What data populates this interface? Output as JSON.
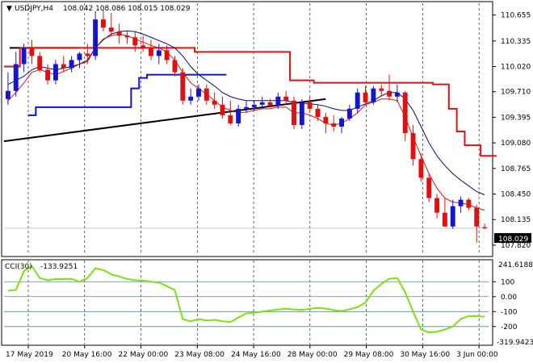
{
  "window": {
    "title": "USDJPY,H4",
    "ohlc": "108.042 108.086 108.015 108.029",
    "collapse_arrow": "▼"
  },
  "price_axis": {
    "labels": [
      "110.655",
      "110.335",
      "110.020",
      "109.710",
      "109.395",
      "109.080",
      "108.765",
      "108.450",
      "108.135",
      "107.820"
    ],
    "current_price": "108.029"
  },
  "cci": {
    "title": "CCI(30)",
    "value": "-133.9251",
    "max_label": "241.6188",
    "min_label": "-319.9423",
    "levels": [
      "100",
      "0.00",
      "-100",
      "-200"
    ]
  },
  "time_axis": {
    "labels": [
      "17 May 2019",
      "20 May 16:00",
      "22 May 00:00",
      "23 May 08:00",
      "24 May 16:00",
      "28 May 00:00",
      "29 May 08:00",
      "30 May 16:00",
      "3 Jun 00:00"
    ]
  },
  "colors": {
    "bull": "#1515d0",
    "bear": "#e01010",
    "signal_red": "#e01010",
    "signal_blue": "#1010e0",
    "ma_navy": "#0a0a70",
    "trendline": "#000000",
    "cci_line": "#7fe010",
    "grid": "#cccccc",
    "level_line": "#4a8aa8",
    "price_label_bg": "#000000"
  },
  "chart_data": {
    "type": "candlestick",
    "symbol": "USDJPY",
    "timeframe": "H4",
    "ylim": [
      107.7,
      110.8
    ],
    "candles": [
      {
        "o": 109.62,
        "h": 109.95,
        "l": 109.55,
        "c": 109.72
      },
      {
        "o": 109.72,
        "h": 110.2,
        "l": 109.65,
        "c": 110.05
      },
      {
        "o": 110.05,
        "h": 110.3,
        "l": 109.95,
        "c": 110.25
      },
      {
        "o": 110.25,
        "h": 110.35,
        "l": 110.05,
        "c": 110.15
      },
      {
        "o": 110.15,
        "h": 110.2,
        "l": 109.95,
        "c": 109.98
      },
      {
        "o": 109.98,
        "h": 110.05,
        "l": 109.8,
        "c": 109.85
      },
      {
        "o": 109.85,
        "h": 110.1,
        "l": 109.8,
        "c": 110.05
      },
      {
        "o": 110.05,
        "h": 110.15,
        "l": 109.95,
        "c": 110.0
      },
      {
        "o": 110.0,
        "h": 110.15,
        "l": 109.95,
        "c": 110.1
      },
      {
        "o": 110.1,
        "h": 110.2,
        "l": 110.0,
        "c": 110.18
      },
      {
        "o": 110.18,
        "h": 110.3,
        "l": 110.05,
        "c": 110.15
      },
      {
        "o": 110.15,
        "h": 110.7,
        "l": 110.1,
        "c": 110.6
      },
      {
        "o": 110.6,
        "h": 110.72,
        "l": 110.45,
        "c": 110.5
      },
      {
        "o": 110.5,
        "h": 110.68,
        "l": 110.4,
        "c": 110.45
      },
      {
        "o": 110.45,
        "h": 110.55,
        "l": 110.3,
        "c": 110.4
      },
      {
        "o": 110.4,
        "h": 110.45,
        "l": 110.3,
        "c": 110.38
      },
      {
        "o": 110.38,
        "h": 110.45,
        "l": 110.2,
        "c": 110.28
      },
      {
        "o": 110.28,
        "h": 110.4,
        "l": 110.2,
        "c": 110.25
      },
      {
        "o": 110.25,
        "h": 110.35,
        "l": 110.1,
        "c": 110.15
      },
      {
        "o": 110.15,
        "h": 110.3,
        "l": 110.05,
        "c": 110.22
      },
      {
        "o": 110.22,
        "h": 110.28,
        "l": 110.05,
        "c": 110.1
      },
      {
        "o": 110.1,
        "h": 110.15,
        "l": 109.9,
        "c": 109.95
      },
      {
        "o": 109.95,
        "h": 110.0,
        "l": 109.55,
        "c": 109.6
      },
      {
        "o": 109.6,
        "h": 109.75,
        "l": 109.55,
        "c": 109.65
      },
      {
        "o": 109.65,
        "h": 109.8,
        "l": 109.6,
        "c": 109.75
      },
      {
        "o": 109.75,
        "h": 109.8,
        "l": 109.55,
        "c": 109.6
      },
      {
        "o": 109.6,
        "h": 109.7,
        "l": 109.5,
        "c": 109.55
      },
      {
        "o": 109.55,
        "h": 109.65,
        "l": 109.38,
        "c": 109.42
      },
      {
        "o": 109.42,
        "h": 109.6,
        "l": 109.3,
        "c": 109.32
      },
      {
        "o": 109.32,
        "h": 109.55,
        "l": 109.28,
        "c": 109.5
      },
      {
        "o": 109.5,
        "h": 109.6,
        "l": 109.45,
        "c": 109.52
      },
      {
        "o": 109.52,
        "h": 109.6,
        "l": 109.48,
        "c": 109.55
      },
      {
        "o": 109.55,
        "h": 109.65,
        "l": 109.5,
        "c": 109.58
      },
      {
        "o": 109.58,
        "h": 109.62,
        "l": 109.52,
        "c": 109.54
      },
      {
        "o": 109.54,
        "h": 109.7,
        "l": 109.5,
        "c": 109.65
      },
      {
        "o": 109.65,
        "h": 109.72,
        "l": 109.55,
        "c": 109.6
      },
      {
        "o": 109.6,
        "h": 109.65,
        "l": 109.25,
        "c": 109.3
      },
      {
        "o": 109.3,
        "h": 109.62,
        "l": 109.25,
        "c": 109.58
      },
      {
        "o": 109.58,
        "h": 109.65,
        "l": 109.45,
        "c": 109.5
      },
      {
        "o": 109.5,
        "h": 109.55,
        "l": 109.35,
        "c": 109.4
      },
      {
        "o": 109.4,
        "h": 109.45,
        "l": 109.2,
        "c": 109.32
      },
      {
        "o": 109.32,
        "h": 109.42,
        "l": 109.22,
        "c": 109.28
      },
      {
        "o": 109.28,
        "h": 109.4,
        "l": 109.2,
        "c": 109.38
      },
      {
        "o": 109.38,
        "h": 109.55,
        "l": 109.35,
        "c": 109.5
      },
      {
        "o": 109.5,
        "h": 109.75,
        "l": 109.45,
        "c": 109.7
      },
      {
        "o": 109.7,
        "h": 109.78,
        "l": 109.55,
        "c": 109.58
      },
      {
        "o": 109.58,
        "h": 109.78,
        "l": 109.55,
        "c": 109.75
      },
      {
        "o": 109.75,
        "h": 109.8,
        "l": 109.65,
        "c": 109.72
      },
      {
        "o": 109.72,
        "h": 109.92,
        "l": 109.6,
        "c": 109.65
      },
      {
        "o": 109.65,
        "h": 109.8,
        "l": 109.58,
        "c": 109.7
      },
      {
        "o": 109.7,
        "h": 109.72,
        "l": 109.1,
        "c": 109.2
      },
      {
        "o": 109.2,
        "h": 109.3,
        "l": 108.8,
        "c": 108.88
      },
      {
        "o": 108.88,
        "h": 108.95,
        "l": 108.6,
        "c": 108.65
      },
      {
        "o": 108.65,
        "h": 108.7,
        "l": 108.35,
        "c": 108.4
      },
      {
        "o": 108.4,
        "h": 108.45,
        "l": 108.15,
        "c": 108.22
      },
      {
        "o": 108.22,
        "h": 108.4,
        "l": 108.05,
        "c": 108.05
      },
      {
        "o": 108.05,
        "h": 108.38,
        "l": 108.02,
        "c": 108.3
      },
      {
        "o": 108.3,
        "h": 108.42,
        "l": 108.22,
        "c": 108.38
      },
      {
        "o": 108.38,
        "h": 108.4,
        "l": 108.25,
        "c": 108.28
      },
      {
        "o": 108.28,
        "h": 108.32,
        "l": 107.85,
        "c": 108.05
      },
      {
        "o": 108.042,
        "h": 108.086,
        "l": 108.015,
        "c": 108.029
      }
    ],
    "overlays": {
      "red_channel": [
        110.02,
        110.02,
        110.25,
        110.25,
        110.25,
        110.25,
        110.25,
        110.25,
        110.25,
        110.25,
        110.25,
        110.25,
        110.25,
        110.25,
        110.25,
        110.25,
        110.25,
        110.25,
        110.25,
        110.25,
        110.25,
        110.25,
        110.25,
        110.25,
        110.2,
        110.2,
        110.2,
        110.2,
        110.2,
        110.2,
        110.2,
        110.2,
        110.2,
        110.2,
        110.2,
        110.2,
        109.85,
        109.85,
        109.85,
        109.82,
        109.82,
        109.82,
        109.82,
        109.82,
        109.82,
        109.82,
        109.82,
        109.82,
        109.82,
        109.82,
        109.82,
        109.82,
        109.82,
        109.82,
        109.8,
        109.8,
        109.5,
        109.22,
        109.05,
        109.05,
        108.92,
        108.92
      ],
      "blue_channel": [
        109.42,
        109.52,
        109.52,
        109.52,
        109.52,
        109.52,
        109.52,
        109.52,
        109.52,
        109.52,
        109.52,
        109.52,
        109.52,
        109.75,
        109.88,
        109.92,
        109.92,
        109.92,
        109.92,
        109.92,
        109.92,
        109.92,
        109.92,
        109.92,
        109.92
      ],
      "ma_navy": [
        109.8,
        109.85,
        109.9,
        109.98,
        110.02,
        110.0,
        109.98,
        110.0,
        110.02,
        110.05,
        110.1,
        110.25,
        110.35,
        110.42,
        110.45,
        110.46,
        110.45,
        110.42,
        110.38,
        110.34,
        110.3,
        110.25,
        110.15,
        110.02,
        109.92,
        109.85,
        109.78,
        109.7,
        109.65,
        109.62,
        109.6,
        109.6,
        109.6,
        109.6,
        109.6,
        109.6,
        109.58,
        109.57,
        109.56,
        109.55,
        109.53,
        109.5,
        109.48,
        109.48,
        109.52,
        109.56,
        109.6,
        109.66,
        109.7,
        109.7,
        109.62,
        109.48,
        109.28,
        109.08,
        108.92,
        108.8,
        108.7,
        108.62,
        108.55,
        108.48,
        108.44
      ],
      "ma_red": [
        109.6,
        109.7,
        109.82,
        109.95,
        109.98,
        109.95,
        109.92,
        109.96,
        110.0,
        110.05,
        110.08,
        110.25,
        110.36,
        110.4,
        110.42,
        110.4,
        110.36,
        110.32,
        110.28,
        110.25,
        110.2,
        110.1,
        109.95,
        109.82,
        109.75,
        109.68,
        109.6,
        109.52,
        109.48,
        109.45,
        109.46,
        109.48,
        109.5,
        109.5,
        109.52,
        109.52,
        109.45,
        109.45,
        109.42,
        109.38,
        109.32,
        109.3,
        109.32,
        109.38,
        109.45,
        109.55,
        109.58,
        109.62,
        109.62,
        109.6,
        109.4,
        109.15,
        108.92,
        108.7,
        108.52,
        108.4,
        108.35,
        108.34,
        108.32,
        108.28,
        108.25
      ],
      "trendline": {
        "from": 109.1,
        "to": 109.62
      }
    },
    "cci": {
      "ylim": [
        -320,
        242
      ],
      "levels": [
        100,
        0,
        -100,
        -200
      ],
      "values": [
        40,
        45,
        170,
        205,
        125,
        110,
        118,
        118,
        120,
        100,
        125,
        190,
        178,
        150,
        135,
        118,
        110,
        108,
        100,
        95,
        70,
        45,
        -150,
        -165,
        -150,
        -160,
        -155,
        -165,
        -170,
        -140,
        -112,
        -108,
        -100,
        -92,
        -86,
        -80,
        -86,
        -88,
        -82,
        -75,
        -80,
        -90,
        -96,
        -85,
        -70,
        -40,
        40,
        85,
        120,
        125,
        30,
        -100,
        -220,
        -240,
        -235,
        -220,
        -200,
        -150,
        -130,
        -130,
        -134
      ]
    },
    "time_labels": [
      "17 May 2019",
      "20 May 16:00",
      "22 May 00:00",
      "23 May 08:00",
      "24 May 16:00",
      "28 May 00:00",
      "29 May 08:00",
      "30 May 16:00",
      "3 Jun 00:00"
    ]
  }
}
